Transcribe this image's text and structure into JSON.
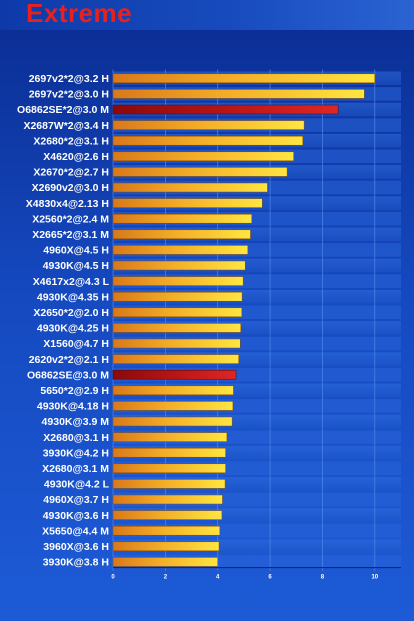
{
  "chart_data": {
    "type": "bar",
    "orientation": "horizontal",
    "title": "Extreme",
    "categories": [
      "2697v2*2@3.2 H",
      "2697v2*2@3.0 H",
      "O6862SE*2@3.0 M",
      "X2687W*2@3.4 H",
      "X2680*2@3.1 H",
      "X4620@2.6 H",
      "X2670*2@2.7 H",
      "X2690v2@3.0 H",
      "X4830x4@2.13 H",
      "X2560*2@2.4 M",
      "X2665*2@3.1 M",
      "4960X@4.5 H",
      "4930K@4.5 H",
      "X4617x2@4.3 L",
      "4930K@4.35 H",
      "X2650*2@2.0 H",
      "4930K@4.25 H",
      "X1560@4.7 H",
      "2620v2*2@2.1 H",
      "O6862SE@3.0 M",
      "5650*2@2.9 H",
      "4930K@4.18 H",
      "4930K@3.9 M",
      "X2680@3.1 H",
      "3930K@4.2 H",
      "X2680@3.1 M",
      "4930K@4.2 L",
      "4960X@3.7 H",
      "4930K@3.6 H",
      "X5650@4.4 M",
      "3960X@3.6 H",
      "3930K@3.8 H"
    ],
    "values": [
      10.0,
      9.6,
      8.6,
      7.3,
      7.25,
      6.9,
      6.65,
      5.9,
      5.7,
      5.3,
      5.25,
      5.15,
      5.05,
      4.97,
      4.93,
      4.92,
      4.88,
      4.86,
      4.8,
      4.7,
      4.6,
      4.58,
      4.55,
      4.35,
      4.3,
      4.3,
      4.28,
      4.18,
      4.16,
      4.08,
      4.05,
      4.0
    ],
    "highlight": [
      false,
      false,
      true,
      false,
      false,
      false,
      false,
      false,
      false,
      false,
      false,
      false,
      false,
      false,
      false,
      false,
      false,
      false,
      false,
      true,
      false,
      false,
      false,
      false,
      false,
      false,
      false,
      false,
      false,
      false,
      false,
      false
    ],
    "xlim": [
      0,
      11
    ],
    "xticks": [
      0,
      2,
      4,
      6,
      8,
      10
    ],
    "bar_color": "#f3ad27",
    "highlight_color": "#c0191a",
    "grid": true
  }
}
